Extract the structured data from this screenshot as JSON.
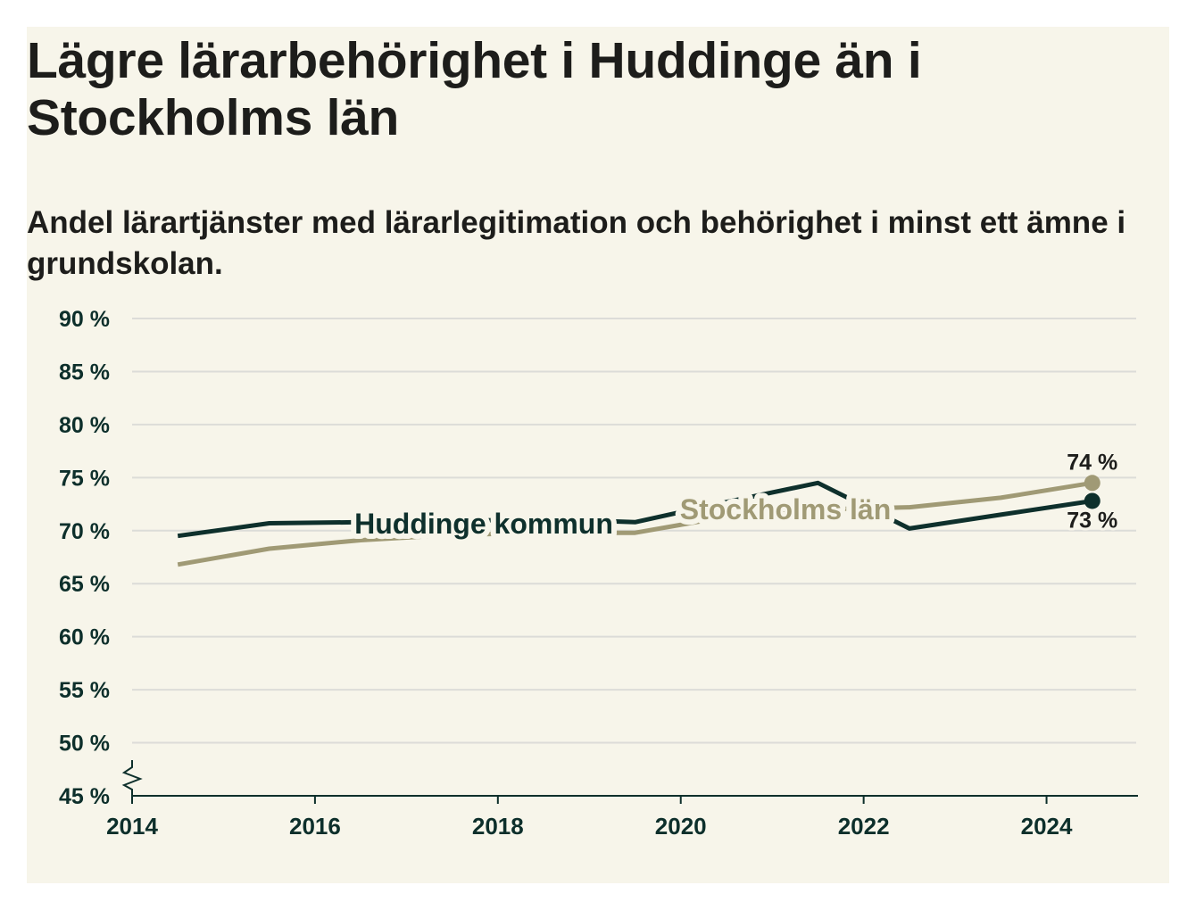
{
  "title": "Lägre lärarbehörighet i Huddinge än i Stockholms län",
  "subtitle": "Andel lärartjänster med lärarlegitimation och behörighet i minst ett ämne i grundskolan.",
  "colors": {
    "background": "#f7f5ea",
    "text": "#1d1d1b",
    "axis": "#0d2f2b",
    "grid": "#dcdcd8",
    "huddinge": "#0e302c",
    "stockholm": "#a09a75"
  },
  "chart_data": {
    "type": "line",
    "x": [
      2014.5,
      2015.5,
      2016.5,
      2017.5,
      2018.5,
      2019.5,
      2020.5,
      2021.5,
      2022.5,
      2023.5,
      2024.5
    ],
    "xlim": [
      2014,
      2025
    ],
    "ylim": [
      45,
      90
    ],
    "xticks": [
      2014,
      2016,
      2018,
      2020,
      2022,
      2024
    ],
    "xtick_labels": [
      "2014",
      "2016",
      "2018",
      "2020",
      "2022",
      "2024"
    ],
    "yticks": [
      45,
      50,
      55,
      60,
      65,
      70,
      75,
      80,
      85,
      90
    ],
    "ytick_labels": [
      "45 %",
      "50 %",
      "55 %",
      "60 %",
      "65 %",
      "70 %",
      "75 %",
      "80 %",
      "85 %",
      "90 %"
    ],
    "grid": true,
    "y_axis_break": true,
    "series": [
      {
        "name": "Stockholms län",
        "color": "#a09a75",
        "values": [
          66.8,
          68.3,
          69.1,
          69.6,
          69.8,
          69.8,
          71.3,
          72.0,
          72.2,
          73.1,
          74.5
        ],
        "end_label": "74 %"
      },
      {
        "name": "Huddinge kommun",
        "color": "#0e302c",
        "values": [
          69.5,
          70.7,
          70.8,
          70.9,
          71.1,
          70.8,
          72.7,
          74.5,
          70.2,
          71.5,
          72.8
        ],
        "end_label": "73 %"
      }
    ]
  }
}
